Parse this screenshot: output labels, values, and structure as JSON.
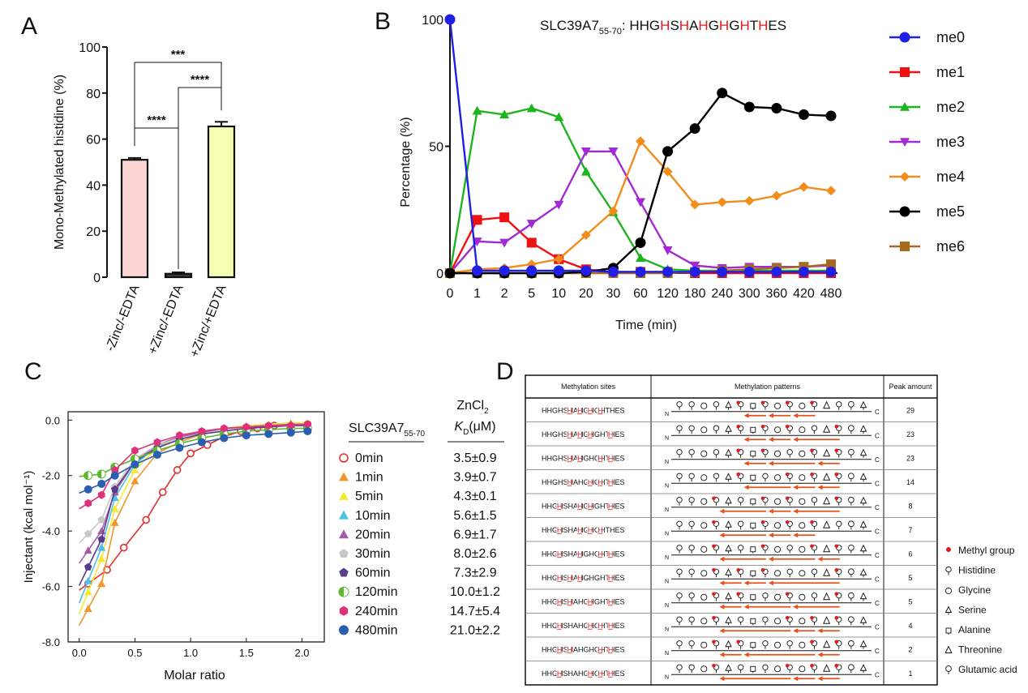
{
  "panels": {
    "a": "A",
    "b": "B",
    "c": "C",
    "d": "D"
  },
  "chart_data": [
    {
      "id": "A",
      "type": "bar",
      "title": "",
      "ylabel": "Mono-Methylated histidine (%)",
      "xlabel": "",
      "ylim": [
        0,
        100
      ],
      "yticks": [
        "0",
        "20",
        "40",
        "60",
        "80",
        "100"
      ],
      "categories": [
        "-Zinc/-EDTA",
        "+Zinc/-EDTA",
        "+Zinc/+EDTA"
      ],
      "values": [
        51,
        1.5,
        65.5
      ],
      "errors": [
        0.8,
        0.6,
        2.0
      ],
      "colors": [
        "#fcd5d5",
        "#3a3a3a",
        "#f4ffb3"
      ],
      "significance": [
        {
          "from": 0,
          "to": 2,
          "label": "***"
        },
        {
          "from": 1,
          "to": 2,
          "label": "****"
        },
        {
          "from": 0,
          "to": 1,
          "label": "****"
        }
      ]
    },
    {
      "id": "B",
      "type": "line",
      "title": "SLC39A7",
      "title_sub": "55-70",
      "title_seq": [
        {
          "t": ": HHG",
          "red": false
        },
        {
          "t": "H",
          "red": true
        },
        {
          "t": "S",
          "red": false
        },
        {
          "t": "H",
          "red": true
        },
        {
          "t": "A",
          "red": false
        },
        {
          "t": "H",
          "red": true
        },
        {
          "t": "G",
          "red": false
        },
        {
          "t": "H",
          "red": true
        },
        {
          "t": "G",
          "red": false
        },
        {
          "t": "H",
          "red": true
        },
        {
          "t": "T",
          "red": false
        },
        {
          "t": "H",
          "red": true
        },
        {
          "t": "ES",
          "red": false
        }
      ],
      "xlabel": "Time (min)",
      "ylabel": "Percentage (%)",
      "ylim": [
        0,
        100
      ],
      "yticks": [
        "0",
        "50",
        "100"
      ],
      "categories": [
        "0",
        "1",
        "2",
        "5",
        "10",
        "20",
        "30",
        "60",
        "120",
        "180",
        "240",
        "300",
        "360",
        "420",
        "480"
      ],
      "series": [
        {
          "name": "me0",
          "color": "#1f1fe6",
          "marker": "circle",
          "values": [
            100,
            1,
            1,
            1,
            1,
            1,
            0.5,
            0.5,
            0.5,
            0.5,
            0.5,
            0.5,
            0.5,
            0.5,
            0.5
          ]
        },
        {
          "name": "me1",
          "color": "#ee1111",
          "marker": "square",
          "values": [
            0,
            21,
            22,
            12,
            5.5,
            1.5,
            0.5,
            0.5,
            0.5,
            0,
            0,
            0,
            0,
            0,
            0
          ]
        },
        {
          "name": "me2",
          "color": "#1db51d",
          "marker": "triangle-up",
          "values": [
            0,
            64,
            62.5,
            65,
            61.5,
            40,
            24,
            6,
            1.5,
            1,
            1,
            1,
            1,
            1,
            1
          ]
        },
        {
          "name": "me3",
          "color": "#a12ad4",
          "marker": "triangle-down",
          "values": [
            0,
            12.5,
            12,
            19.5,
            27,
            48,
            48,
            28,
            9,
            3,
            2,
            2.5,
            2.5,
            2.5,
            3
          ]
        },
        {
          "name": "me4",
          "color": "#f28c1a",
          "marker": "diamond",
          "values": [
            0,
            1.5,
            2,
            3.5,
            5.5,
            15,
            24.5,
            52,
            40,
            27,
            28,
            28.5,
            30.5,
            34,
            32.5
          ]
        },
        {
          "name": "me5",
          "color": "#000000",
          "marker": "circle",
          "values": [
            0,
            0,
            0,
            0,
            0,
            0.5,
            2,
            12,
            48,
            57,
            71,
            65.5,
            65,
            62.5,
            62
          ]
        },
        {
          "name": "me6",
          "color": "#a66b1e",
          "marker": "square",
          "values": [
            0,
            0,
            0,
            0,
            0,
            0,
            0,
            0,
            0,
            0.5,
            1,
            1.5,
            2,
            2.5,
            3.5
          ]
        }
      ]
    },
    {
      "id": "C",
      "type": "scatter",
      "title": "",
      "xlabel": "Molar ratio",
      "ylabel": "Injectant (kcal mol⁻¹)",
      "xlim": [
        -0.1,
        2.2
      ],
      "ylim": [
        -8.0,
        0.3
      ],
      "xticks": [
        "0.0",
        "0.5",
        "1.0",
        "1.5",
        "2.0"
      ],
      "yticks": [
        "0.0",
        "-2.0",
        "-4.0",
        "-6.0",
        "-8.0"
      ],
      "series": [
        {
          "name": "0min",
          "color": "#e03030",
          "marker": "circle-open",
          "kd": 3.5,
          "x": [
            0.08,
            0.25,
            0.4,
            0.6,
            0.75,
            0.88,
            1.0,
            1.15,
            1.3,
            1.45,
            1.6,
            1.75,
            1.9,
            2.05
          ],
          "y": [
            -5.9,
            -5.4,
            -4.6,
            -3.6,
            -2.6,
            -1.8,
            -1.2,
            -0.9,
            -0.6,
            -0.4,
            -0.3,
            -0.2,
            -0.2,
            -0.15
          ]
        },
        {
          "name": "1min",
          "color": "#f0962a",
          "marker": "triangle-up",
          "kd": 3.9,
          "x": [
            0.08,
            0.2,
            0.32,
            0.5,
            0.7,
            0.9,
            1.1,
            1.3,
            1.5,
            1.7,
            1.9,
            2.05
          ],
          "y": [
            -6.8,
            -5.9,
            -3.7,
            -2.2,
            -1.2,
            -0.8,
            -0.5,
            -0.35,
            -0.25,
            -0.2,
            -0.2,
            -0.15
          ]
        },
        {
          "name": "5min",
          "color": "#f4e832",
          "marker": "triangle-up",
          "kd": 4.3,
          "x": [
            0.08,
            0.2,
            0.32,
            0.5,
            0.7,
            0.9,
            1.1,
            1.3,
            1.5,
            1.7,
            1.9,
            2.05
          ],
          "y": [
            -6.2,
            -5.0,
            -3.2,
            -1.8,
            -1.0,
            -0.6,
            -0.4,
            -0.3,
            -0.2,
            -0.15,
            -0.1,
            -0.1
          ]
        },
        {
          "name": "10min",
          "color": "#4fbfe8",
          "marker": "triangle-up",
          "kd": 5.6,
          "x": [
            0.08,
            0.2,
            0.32,
            0.5,
            0.7,
            0.9,
            1.1,
            1.3,
            1.5,
            1.7,
            1.9,
            2.05
          ],
          "y": [
            -5.8,
            -4.6,
            -2.8,
            -1.6,
            -0.95,
            -0.6,
            -0.45,
            -0.3,
            -0.25,
            -0.2,
            -0.15,
            -0.15
          ]
        },
        {
          "name": "20min",
          "color": "#a65aa6",
          "marker": "triangle-up",
          "kd": 6.9,
          "x": [
            0.08,
            0.2,
            0.32,
            0.5,
            0.7,
            0.9,
            1.1,
            1.3,
            1.5,
            1.7,
            1.9,
            2.05
          ],
          "y": [
            -4.7,
            -4.0,
            -2.6,
            -1.5,
            -0.9,
            -0.6,
            -0.45,
            -0.3,
            -0.25,
            -0.2,
            -0.15,
            -0.15
          ]
        },
        {
          "name": "30min",
          "color": "#c8c8c8",
          "marker": "pentagon",
          "kd": 8.0,
          "x": [
            0.08,
            0.2,
            0.32,
            0.5,
            0.7,
            0.9,
            1.1,
            1.3,
            1.5,
            1.7,
            1.9,
            2.05
          ],
          "y": [
            -4.1,
            -3.6,
            -2.4,
            -1.4,
            -0.9,
            -0.65,
            -0.5,
            -0.35,
            -0.3,
            -0.25,
            -0.2,
            -0.2
          ]
        },
        {
          "name": "60min",
          "color": "#5a3c8c",
          "marker": "pentagon",
          "kd": 7.3,
          "x": [
            0.08,
            0.2,
            0.32,
            0.5,
            0.7,
            0.9,
            1.1,
            1.3,
            1.5,
            1.7,
            1.9,
            2.05
          ],
          "y": [
            -5.3,
            -4.3,
            -2.5,
            -1.5,
            -1.0,
            -0.7,
            -0.5,
            -0.4,
            -0.3,
            -0.25,
            -0.2,
            -0.2
          ]
        },
        {
          "name": "120min",
          "color": "#5cb82e",
          "marker": "circle-half",
          "kd": 10.0,
          "x": [
            0.08,
            0.2,
            0.32,
            0.5,
            0.7,
            0.9,
            1.1,
            1.3,
            1.5,
            1.7,
            1.9,
            2.05
          ],
          "y": [
            -2.0,
            -1.95,
            -1.7,
            -1.4,
            -1.1,
            -0.85,
            -0.65,
            -0.5,
            -0.4,
            -0.35,
            -0.3,
            -0.3
          ]
        },
        {
          "name": "240min",
          "color": "#e0307a",
          "marker": "hexagon",
          "kd": 14.7,
          "x": [
            0.08,
            0.2,
            0.32,
            0.5,
            0.7,
            0.9,
            1.1,
            1.3,
            1.5,
            1.7,
            1.9,
            2.05
          ],
          "y": [
            -3.0,
            -2.7,
            -1.8,
            -1.1,
            -0.8,
            -0.55,
            -0.4,
            -0.3,
            -0.25,
            -0.2,
            -0.2,
            -0.15
          ]
        },
        {
          "name": "480min",
          "color": "#2a5fb0",
          "marker": "circle",
          "kd": 21.0,
          "x": [
            0.08,
            0.2,
            0.32,
            0.5,
            0.7,
            0.9,
            1.1,
            1.3,
            1.5,
            1.7,
            1.9,
            2.05
          ],
          "y": [
            -2.5,
            -2.3,
            -2.0,
            -1.6,
            -1.25,
            -1.0,
            -0.8,
            -0.65,
            -0.55,
            -0.5,
            -0.45,
            -0.4
          ]
        }
      ]
    }
  ],
  "panel_c_legend": {
    "header_name": "SLC39A7",
    "header_sub": "55-70",
    "kd_header_line1": "ZnCl",
    "kd_header_sub1": "2",
    "kd_header_k": "K",
    "kd_header_sub2": "D",
    "kd_header_unit": "(μM)",
    "rows": [
      {
        "label": "0min",
        "kd": "3.5±0.9"
      },
      {
        "label": "1min",
        "kd": "3.9±0.7"
      },
      {
        "label": "5min",
        "kd": "4.3±0.1"
      },
      {
        "label": "10min",
        "kd": "5.6±1.5"
      },
      {
        "label": "20min",
        "kd": "6.9±1.7"
      },
      {
        "label": "30min",
        "kd": "8.0±2.6"
      },
      {
        "label": "60min",
        "kd": "7.3±2.9"
      },
      {
        "label": "120min",
        "kd": "10.0±1.2"
      },
      {
        "label": "240min",
        "kd": "14.7±5.4"
      },
      {
        "label": "480min",
        "kd": "21.0±2.2"
      }
    ]
  },
  "table_d": {
    "headers": [
      "Methylation sites",
      "Methylation patterns",
      "Peak amount"
    ],
    "n_label": "N",
    "c_label": "C",
    "rows": [
      {
        "seq": "HHGHSHAHGHGHTHES",
        "red": [
          5,
          7,
          9,
          11
        ],
        "peak": "29"
      },
      {
        "seq": "HHGHSHAHGHGHTHES",
        "red": [
          5,
          7,
          9,
          13
        ],
        "peak": "23"
      },
      {
        "seq": "HHGHSHAHGHGHTHES",
        "red": [
          5,
          7,
          11,
          13
        ],
        "peak": "23"
      },
      {
        "seq": "HHGHSHAHGHGHTHES",
        "red": [
          5,
          9,
          11,
          13
        ],
        "peak": "14"
      },
      {
        "seq": "HHGHSHAHGHGHTHES",
        "red": [
          3,
          7,
          9,
          13
        ],
        "peak": "8"
      },
      {
        "seq": "HHGHSHAHGHGHTHES",
        "red": [
          3,
          7,
          9,
          11
        ],
        "peak": "7"
      },
      {
        "seq": "HHGHSHAHGHGHTHES",
        "red": [
          3,
          7,
          11,
          13
        ],
        "peak": "6"
      },
      {
        "seq": "HHGHSHAHGHGHTHES",
        "red": [
          3,
          5,
          7,
          13
        ],
        "peak": "5"
      },
      {
        "seq": "HHGHSHAHGHGHTHES",
        "red": [
          3,
          5,
          9,
          13
        ],
        "peak": "5"
      },
      {
        "seq": "HHGHSHAHGHGHTHES",
        "red": [
          3,
          9,
          11,
          13
        ],
        "peak": "4"
      },
      {
        "seq": "HHGHSHAHGHGHTHES",
        "red": [
          3,
          5,
          11,
          13
        ],
        "peak": "2"
      },
      {
        "seq": "HHGHSHAHGHGHTHES",
        "red": [
          3,
          9,
          11,
          13
        ],
        "peak": "1"
      }
    ]
  },
  "legend_d": [
    {
      "symbol": "methyl",
      "label": "Methyl group"
    },
    {
      "symbol": "histidine",
      "label": "Histidine"
    },
    {
      "symbol": "glycine",
      "label": "Glycine"
    },
    {
      "symbol": "serine",
      "label": "Serine"
    },
    {
      "symbol": "alanine",
      "label": "Alanine"
    },
    {
      "symbol": "threonine",
      "label": "Threonine"
    },
    {
      "symbol": "glutamic",
      "label": "Glutamic acid"
    }
  ]
}
